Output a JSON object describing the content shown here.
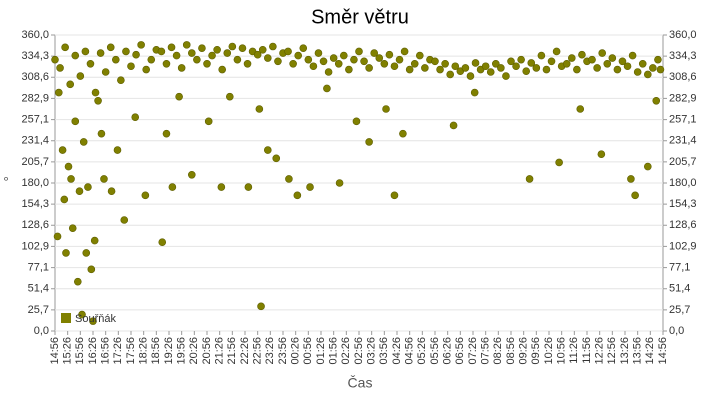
{
  "chart_data": {
    "type": "scatter",
    "title": "Směr větru",
    "x_label": "Čas",
    "y_label": "°",
    "color": "#808000",
    "grid": true,
    "legend": "bottom-left",
    "categories": [
      "14:56",
      "15:26",
      "15:56",
      "16:26",
      "16:56",
      "17:26",
      "17:56",
      "18:26",
      "18:56",
      "19:26",
      "19:56",
      "20:26",
      "20:56",
      "21:26",
      "21:56",
      "22:26",
      "22:56",
      "23:26",
      "23:56",
      "00:26",
      "00:56",
      "01:26",
      "01:56",
      "02:26",
      "02:56",
      "03:26",
      "03:56",
      "04:26",
      "04:56",
      "05:26",
      "05:56",
      "06:26",
      "06:56",
      "07:26",
      "07:56",
      "08:26",
      "08:56",
      "09:26",
      "09:56",
      "10:26",
      "10:56",
      "11:26",
      "11:56",
      "12:26",
      "12:56",
      "13:26",
      "13:56",
      "14:26",
      "14:56"
    ],
    "ylim": [
      0,
      360
    ],
    "yticks": [
      {
        "value": 0,
        "label": "0,0"
      },
      {
        "value": 25.7,
        "label": "25,7"
      },
      {
        "value": 51.4,
        "label": "51,4"
      },
      {
        "value": 77.1,
        "label": "77,1"
      },
      {
        "value": 102.9,
        "label": "102,9"
      },
      {
        "value": 128.6,
        "label": "128,6"
      },
      {
        "value": 154.3,
        "label": "154,3"
      },
      {
        "value": 180,
        "label": "180,0"
      },
      {
        "value": 205.7,
        "label": "205,7"
      },
      {
        "value": 231.4,
        "label": "231,4"
      },
      {
        "value": 257.1,
        "label": "257,1"
      },
      {
        "value": 282.9,
        "label": "282,9"
      },
      {
        "value": 308.6,
        "label": "308,6"
      },
      {
        "value": 334.3,
        "label": "334,3"
      },
      {
        "value": 360,
        "label": "360,0"
      }
    ],
    "series": [
      {
        "name": "Souřňák",
        "color": "#808000",
        "x": [
          "14:56",
          "15:08",
          "15:20",
          "15:32",
          "15:44",
          "15:56",
          "16:08",
          "16:20",
          "16:32",
          "16:44",
          "16:56",
          "17:08",
          "17:20",
          "17:32",
          "17:44",
          "17:56",
          "18:08",
          "18:20",
          "18:32",
          "18:44",
          "18:56",
          "19:08",
          "19:20",
          "19:32",
          "19:44",
          "19:56",
          "20:08",
          "20:20",
          "20:32",
          "20:44",
          "20:56",
          "21:08",
          "21:20",
          "21:32",
          "21:44",
          "21:56",
          "22:08",
          "22:20",
          "22:32",
          "22:44",
          "22:56",
          "23:08",
          "23:20",
          "23:32",
          "23:44",
          "23:56",
          "00:08",
          "00:20",
          "00:32",
          "00:44",
          "00:56",
          "01:08",
          "01:20",
          "01:32",
          "01:44",
          "01:56",
          "02:08",
          "02:20",
          "02:32",
          "02:44",
          "02:56",
          "03:08",
          "03:20",
          "03:32",
          "03:44",
          "03:56",
          "04:08",
          "04:20",
          "04:32",
          "04:44",
          "04:56",
          "05:08",
          "05:20",
          "05:32",
          "05:44",
          "05:56",
          "06:08",
          "06:20",
          "06:32",
          "06:44",
          "06:56",
          "07:08",
          "07:20",
          "07:32",
          "07:44",
          "07:56",
          "08:08",
          "08:20",
          "08:32",
          "08:44",
          "08:56",
          "09:08",
          "09:20",
          "09:32",
          "09:44",
          "09:56",
          "10:08",
          "10:20",
          "10:32",
          "10:44",
          "10:56",
          "11:08",
          "11:20",
          "11:32",
          "11:44",
          "11:56",
          "12:08",
          "12:20",
          "12:32",
          "12:44",
          "12:56",
          "13:08",
          "13:20",
          "13:32",
          "13:44",
          "13:56",
          "14:08",
          "14:20",
          "14:32",
          "14:44",
          "14:50",
          "15:02",
          "15:05",
          "15:14",
          "15:18",
          "15:22",
          "15:28",
          "15:34",
          "15:38",
          "15:44",
          "15:50",
          "15:54",
          "16:00",
          "16:04",
          "16:10",
          "16:14",
          "16:22",
          "16:26",
          "16:30",
          "16:38",
          "16:46",
          "16:52",
          "17:10",
          "17:24",
          "17:40",
          "18:06",
          "18:30",
          "19:10",
          "19:20",
          "19:34",
          "19:50",
          "20:20",
          "21:00",
          "21:30",
          "21:50",
          "22:34",
          "23:00",
          "23:04",
          "23:20",
          "23:40",
          "00:10",
          "00:30",
          "01:00",
          "01:40",
          "02:10",
          "02:50",
          "03:20",
          "04:00",
          "04:20",
          "04:40",
          "06:40",
          "07:30",
          "09:40",
          "10:50",
          "11:40",
          "12:30",
          "13:40",
          "13:50",
          "14:20",
          "14:40"
        ],
        "values": [
          330,
          320,
          345,
          300,
          335,
          310,
          340,
          325,
          290,
          338,
          315,
          345,
          330,
          305,
          340,
          322,
          336,
          348,
          318,
          330,
          342,
          340,
          325,
          345,
          335,
          320,
          348,
          338,
          330,
          344,
          325,
          335,
          342,
          318,
          338,
          346,
          330,
          344,
          325,
          340,
          336,
          342,
          332,
          346,
          328,
          338,
          340,
          325,
          335,
          344,
          330,
          322,
          338,
          328,
          315,
          332,
          325,
          335,
          318,
          330,
          340,
          328,
          320,
          338,
          332,
          325,
          336,
          322,
          330,
          340,
          318,
          325,
          335,
          320,
          330,
          328,
          318,
          325,
          312,
          322,
          316,
          320,
          310,
          326,
          318,
          322,
          315,
          325,
          320,
          310,
          328,
          322,
          330,
          316,
          326,
          320,
          335,
          318,
          328,
          340,
          322,
          325,
          332,
          318,
          336,
          328,
          330,
          320,
          338,
          325,
          332,
          318,
          328,
          322,
          335,
          315,
          325,
          312,
          320,
          330,
          318,
          115,
          290,
          220,
          160,
          95,
          200,
          185,
          125,
          255,
          60,
          170,
          20,
          230,
          95,
          175,
          75,
          12,
          110,
          280,
          240,
          185,
          170,
          220,
          135,
          260,
          165,
          108,
          240,
          175,
          285,
          190,
          255,
          175,
          285,
          175,
          270,
          30,
          220,
          210,
          185,
          165,
          175,
          295,
          180,
          255,
          230,
          270,
          165,
          240,
          250,
          290,
          185,
          205,
          270,
          215,
          185,
          165,
          200,
          280
        ]
      }
    ]
  }
}
